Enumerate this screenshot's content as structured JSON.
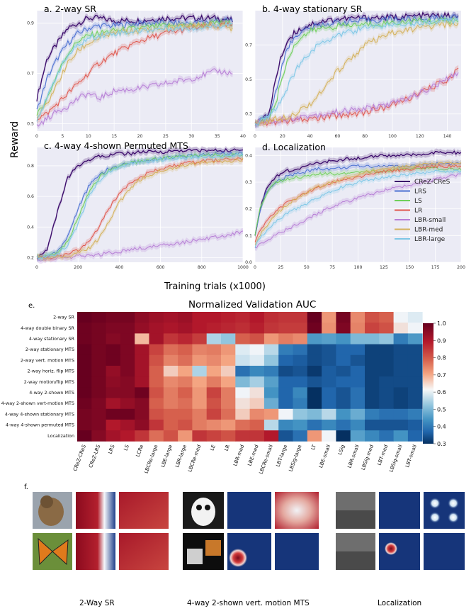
{
  "figure": {
    "ylabel": "Reward",
    "xlabel": "Training trials (x1000)",
    "panel_e_letter": "e.",
    "panel_f_letter": "f."
  },
  "legend": [
    "CReZ-CReS",
    "LRS",
    "LS",
    "LR",
    "LBR-small",
    "LBR-med",
    "LBR-large"
  ],
  "colors": {
    "CReZ-CReS": "#3b0a6b",
    "LRS": "#4a6fd1",
    "LS": "#6fcf5a",
    "LR": "#e0584e",
    "LBR-small": "#b77fd6",
    "LBR-med": "#d4b25c",
    "LBR-large": "#7ec7e6"
  },
  "chart_data": [
    {
      "type": "line",
      "title": "a. 2-way SR",
      "xlim": [
        0,
        40
      ],
      "ylim": [
        0.47,
        0.95
      ],
      "xticks": [
        0,
        5,
        10,
        15,
        20,
        25,
        30,
        35,
        40
      ],
      "yticks": [
        0.5,
        0.7,
        0.9
      ],
      "x": [
        0,
        2,
        4,
        6,
        8,
        10,
        12,
        15,
        20,
        25,
        30,
        35,
        38
      ],
      "series": [
        {
          "name": "CReZ-CReS",
          "values": [
            0.6,
            0.76,
            0.82,
            0.88,
            0.9,
            0.92,
            0.92,
            0.91,
            0.91,
            0.92,
            0.92,
            0.92,
            0.91
          ]
        },
        {
          "name": "LRS",
          "values": [
            0.55,
            0.68,
            0.76,
            0.82,
            0.86,
            0.88,
            0.89,
            0.89,
            0.9,
            0.9,
            0.9,
            0.91,
            0.91
          ]
        },
        {
          "name": "LS",
          "values": [
            0.53,
            0.6,
            0.7,
            0.78,
            0.83,
            0.85,
            0.86,
            0.87,
            0.88,
            0.89,
            0.89,
            0.9,
            0.9
          ]
        },
        {
          "name": "LR",
          "values": [
            0.52,
            0.54,
            0.58,
            0.62,
            0.66,
            0.7,
            0.74,
            0.78,
            0.83,
            0.86,
            0.88,
            0.89,
            0.89
          ]
        },
        {
          "name": "LBR-small",
          "values": [
            0.49,
            0.52,
            0.55,
            0.57,
            0.6,
            0.62,
            0.6,
            0.63,
            0.64,
            0.66,
            0.68,
            0.71,
            0.7
          ]
        },
        {
          "name": "LBR-med",
          "values": [
            0.52,
            0.58,
            0.66,
            0.74,
            0.79,
            0.82,
            0.84,
            0.86,
            0.87,
            0.88,
            0.89,
            0.89,
            0.88
          ]
        },
        {
          "name": "LBR-large",
          "values": [
            0.52,
            0.6,
            0.7,
            0.77,
            0.81,
            0.84,
            0.85,
            0.86,
            0.87,
            0.88,
            0.88,
            0.89,
            0.9
          ]
        }
      ]
    },
    {
      "type": "line",
      "title": "b. 4-way stationary SR",
      "xlim": [
        0,
        150
      ],
      "ylim": [
        0.2,
        0.9
      ],
      "xticks": [
        0,
        20,
        40,
        60,
        80,
        100,
        120,
        140
      ],
      "yticks": [
        0.3,
        0.5,
        0.7
      ],
      "x": [
        0,
        5,
        10,
        15,
        20,
        25,
        30,
        40,
        50,
        60,
        80,
        100,
        120,
        140,
        148
      ],
      "series": [
        {
          "name": "CReZ-CReS",
          "values": [
            0.25,
            0.26,
            0.3,
            0.5,
            0.66,
            0.74,
            0.78,
            0.82,
            0.84,
            0.85,
            0.86,
            0.86,
            0.87,
            0.87,
            0.86
          ]
        },
        {
          "name": "LRS",
          "values": [
            0.25,
            0.26,
            0.28,
            0.42,
            0.6,
            0.7,
            0.76,
            0.8,
            0.82,
            0.83,
            0.84,
            0.85,
            0.85,
            0.86,
            0.86
          ]
        },
        {
          "name": "LS",
          "values": [
            0.25,
            0.26,
            0.27,
            0.36,
            0.52,
            0.64,
            0.72,
            0.78,
            0.8,
            0.81,
            0.82,
            0.83,
            0.84,
            0.84,
            0.84
          ]
        },
        {
          "name": "LR",
          "values": [
            0.24,
            0.25,
            0.25,
            0.25,
            0.26,
            0.26,
            0.26,
            0.27,
            0.28,
            0.29,
            0.31,
            0.35,
            0.42,
            0.5,
            0.56
          ]
        },
        {
          "name": "LBR-small",
          "values": [
            0.24,
            0.25,
            0.26,
            0.26,
            0.27,
            0.27,
            0.28,
            0.29,
            0.3,
            0.31,
            0.33,
            0.36,
            0.42,
            0.5,
            0.54
          ]
        },
        {
          "name": "LBR-med",
          "values": [
            0.24,
            0.25,
            0.26,
            0.27,
            0.28,
            0.29,
            0.31,
            0.36,
            0.44,
            0.55,
            0.7,
            0.77,
            0.8,
            0.82,
            0.82
          ]
        },
        {
          "name": "LBR-large",
          "values": [
            0.24,
            0.26,
            0.28,
            0.33,
            0.4,
            0.48,
            0.56,
            0.66,
            0.72,
            0.76,
            0.8,
            0.82,
            0.83,
            0.84,
            0.84
          ]
        }
      ]
    },
    {
      "type": "line",
      "title": "c. 4-way 4-shown Permuted MTS",
      "xlim": [
        0,
        1000
      ],
      "ylim": [
        0.17,
        0.92
      ],
      "xticks": [
        0,
        200,
        400,
        600,
        800,
        1000
      ],
      "yticks": [
        0.2,
        0.4,
        0.6,
        0.8
      ],
      "x": [
        0,
        50,
        100,
        150,
        200,
        250,
        300,
        350,
        400,
        450,
        500,
        600,
        700,
        800,
        900,
        1000
      ],
      "series": [
        {
          "name": "CReZ-CReS",
          "values": [
            0.2,
            0.25,
            0.5,
            0.72,
            0.8,
            0.84,
            0.86,
            0.87,
            0.88,
            0.88,
            0.89,
            0.89,
            0.9,
            0.9,
            0.9,
            0.9
          ]
        },
        {
          "name": "LRS",
          "values": [
            0.2,
            0.21,
            0.24,
            0.34,
            0.52,
            0.66,
            0.74,
            0.78,
            0.8,
            0.82,
            0.83,
            0.85,
            0.86,
            0.87,
            0.88,
            0.88
          ]
        },
        {
          "name": "LS",
          "values": [
            0.2,
            0.21,
            0.23,
            0.3,
            0.46,
            0.62,
            0.72,
            0.77,
            0.8,
            0.82,
            0.83,
            0.85,
            0.86,
            0.87,
            0.87,
            0.87
          ]
        },
        {
          "name": "LR",
          "values": [
            0.2,
            0.2,
            0.21,
            0.22,
            0.25,
            0.3,
            0.4,
            0.52,
            0.62,
            0.69,
            0.73,
            0.78,
            0.81,
            0.83,
            0.84,
            0.85
          ]
        },
        {
          "name": "LBR-small",
          "values": [
            0.19,
            0.19,
            0.2,
            0.2,
            0.21,
            0.21,
            0.22,
            0.23,
            0.24,
            0.25,
            0.26,
            0.28,
            0.3,
            0.32,
            0.34,
            0.37
          ]
        },
        {
          "name": "LBR-med",
          "values": [
            0.2,
            0.2,
            0.21,
            0.21,
            0.23,
            0.26,
            0.32,
            0.44,
            0.56,
            0.65,
            0.71,
            0.77,
            0.8,
            0.82,
            0.83,
            0.84
          ]
        },
        {
          "name": "LBR-large",
          "values": [
            0.2,
            0.21,
            0.22,
            0.28,
            0.42,
            0.6,
            0.7,
            0.76,
            0.79,
            0.81,
            0.82,
            0.84,
            0.85,
            0.86,
            0.86,
            0.87
          ]
        }
      ]
    },
    {
      "type": "line",
      "title": "d. Localization",
      "xlim": [
        0,
        200
      ],
      "ylim": [
        0.0,
        0.43
      ],
      "xticks": [
        0,
        25,
        50,
        75,
        100,
        125,
        150,
        175,
        200
      ],
      "yticks": [
        0.0,
        0.1,
        0.2,
        0.3,
        0.4
      ],
      "x": [
        0,
        5,
        10,
        15,
        20,
        30,
        40,
        50,
        60,
        75,
        100,
        125,
        150,
        175,
        200
      ],
      "series": [
        {
          "name": "CReZ-CReS",
          "values": [
            0.1,
            0.2,
            0.26,
            0.3,
            0.32,
            0.34,
            0.35,
            0.36,
            0.37,
            0.38,
            0.39,
            0.4,
            0.4,
            0.41,
            0.41
          ]
        },
        {
          "name": "LRS",
          "values": [
            0.1,
            0.19,
            0.25,
            0.28,
            0.3,
            0.32,
            0.33,
            0.34,
            0.35,
            0.35,
            0.36,
            0.36,
            0.36,
            0.37,
            0.37
          ]
        },
        {
          "name": "LS",
          "values": [
            0.1,
            0.2,
            0.25,
            0.28,
            0.3,
            0.31,
            0.32,
            0.32,
            0.33,
            0.33,
            0.34,
            0.34,
            0.35,
            0.35,
            0.35
          ]
        },
        {
          "name": "LR",
          "values": [
            0.08,
            0.12,
            0.15,
            0.17,
            0.19,
            0.22,
            0.24,
            0.26,
            0.28,
            0.3,
            0.32,
            0.34,
            0.35,
            0.36,
            0.36
          ]
        },
        {
          "name": "LBR-small",
          "values": [
            0.05,
            0.07,
            0.08,
            0.09,
            0.1,
            0.12,
            0.14,
            0.16,
            0.18,
            0.21,
            0.24,
            0.27,
            0.29,
            0.31,
            0.33
          ]
        },
        {
          "name": "LBR-med",
          "values": [
            0.07,
            0.1,
            0.13,
            0.16,
            0.18,
            0.21,
            0.24,
            0.26,
            0.28,
            0.3,
            0.33,
            0.35,
            0.36,
            0.37,
            0.37
          ]
        },
        {
          "name": "LBR-large",
          "values": [
            0.06,
            0.09,
            0.11,
            0.13,
            0.15,
            0.18,
            0.2,
            0.22,
            0.24,
            0.27,
            0.3,
            0.32,
            0.33,
            0.34,
            0.34
          ]
        }
      ]
    },
    {
      "type": "heatmap",
      "title": "Normalized Validation AUC",
      "colorbar_ticks": [
        1.0,
        0.9,
        0.8,
        0.7,
        0.6,
        0.5,
        0.4,
        0.3
      ],
      "rows": [
        "2-way SR",
        "4-way double binary SR",
        "4-way stationary SR",
        "2-way stationary MTS",
        "2-way vert. motion MTS",
        "2-way horiz. flip MTS",
        "2-way motion/flip MTS",
        "4-way 2-shown MTS",
        "4-way 2-shown vert-motion MTS",
        "4-way 4-shown stationary MTS",
        "4-way 4-shown permuted MTS",
        "Localization"
      ],
      "cols": [
        "CReZ-CReS",
        "CReZ-LRS",
        "LRS",
        "LS",
        "LCRe",
        "LBCRe-large",
        "LBE-large",
        "LBR-large",
        "LBCRe-med",
        "LE",
        "LR",
        "LBR-med",
        "LBE-med",
        "LBCRe-small",
        "LBT-large",
        "LBSig-large",
        "LT",
        "LBE-small",
        "LSig",
        "LBR-small",
        "LBSig-med",
        "LBT-med",
        "LBSig-small",
        "LBT-small"
      ],
      "values": [
        [
          1.0,
          0.99,
          0.98,
          0.98,
          0.95,
          0.93,
          0.92,
          0.93,
          0.9,
          0.9,
          0.89,
          0.88,
          0.9,
          0.87,
          0.86,
          0.86,
          1.0,
          0.72,
          0.98,
          0.74,
          0.82,
          0.8,
          0.62,
          0.6
        ],
        [
          0.99,
          0.98,
          0.97,
          0.97,
          0.94,
          0.92,
          0.91,
          0.92,
          0.9,
          0.89,
          0.88,
          0.87,
          0.89,
          0.86,
          0.85,
          0.85,
          0.99,
          0.73,
          0.97,
          0.75,
          0.84,
          0.82,
          0.64,
          0.62
        ],
        [
          0.99,
          0.98,
          0.96,
          0.97,
          0.68,
          0.92,
          0.86,
          0.88,
          0.85,
          0.55,
          0.52,
          0.8,
          0.82,
          0.72,
          0.76,
          0.74,
          0.45,
          0.46,
          0.44,
          0.5,
          0.5,
          0.52,
          0.4,
          0.45
        ],
        [
          1.0,
          0.98,
          0.99,
          0.97,
          0.92,
          0.84,
          0.78,
          0.8,
          0.75,
          0.76,
          0.72,
          0.6,
          0.62,
          0.56,
          0.4,
          0.38,
          0.33,
          0.34,
          0.36,
          0.36,
          0.32,
          0.32,
          0.33,
          0.33
        ],
        [
          1.0,
          0.98,
          0.99,
          0.97,
          0.92,
          0.82,
          0.75,
          0.78,
          0.72,
          0.74,
          0.7,
          0.58,
          0.6,
          0.52,
          0.36,
          0.35,
          0.33,
          0.34,
          0.36,
          0.34,
          0.32,
          0.32,
          0.33,
          0.33
        ],
        [
          1.0,
          0.98,
          0.94,
          0.97,
          0.92,
          0.8,
          0.66,
          0.7,
          0.55,
          0.7,
          0.66,
          0.38,
          0.42,
          0.4,
          0.33,
          0.34,
          0.31,
          0.35,
          0.34,
          0.36,
          0.32,
          0.32,
          0.33,
          0.33
        ],
        [
          1.0,
          0.98,
          0.95,
          0.96,
          0.92,
          0.8,
          0.74,
          0.76,
          0.7,
          0.76,
          0.7,
          0.5,
          0.54,
          0.46,
          0.36,
          0.36,
          0.34,
          0.35,
          0.36,
          0.36,
          0.32,
          0.33,
          0.33,
          0.33
        ],
        [
          1.0,
          0.98,
          0.96,
          0.96,
          0.99,
          0.82,
          0.76,
          0.8,
          0.72,
          0.84,
          0.76,
          0.62,
          0.64,
          0.44,
          0.36,
          0.42,
          0.3,
          0.36,
          0.34,
          0.38,
          0.32,
          0.33,
          0.32,
          0.33
        ],
        [
          0.99,
          0.97,
          0.92,
          0.94,
          0.96,
          0.8,
          0.76,
          0.78,
          0.72,
          0.82,
          0.76,
          0.64,
          0.66,
          0.48,
          0.36,
          0.4,
          0.3,
          0.36,
          0.34,
          0.38,
          0.32,
          0.33,
          0.32,
          0.33
        ],
        [
          0.98,
          0.97,
          0.99,
          0.99,
          0.96,
          0.82,
          0.8,
          0.8,
          0.76,
          0.84,
          0.78,
          0.66,
          0.74,
          0.72,
          0.62,
          0.52,
          0.5,
          0.56,
          0.44,
          0.48,
          0.4,
          0.38,
          0.38,
          0.4
        ],
        [
          0.98,
          0.97,
          0.9,
          0.92,
          0.95,
          0.86,
          0.8,
          0.82,
          0.76,
          0.74,
          0.72,
          0.78,
          0.8,
          0.56,
          0.42,
          0.44,
          0.38,
          0.42,
          0.38,
          0.42,
          0.34,
          0.34,
          0.34,
          0.35
        ],
        [
          1.0,
          0.96,
          0.92,
          0.9,
          0.86,
          0.78,
          0.82,
          0.72,
          0.86,
          0.84,
          0.82,
          0.86,
          0.86,
          0.9,
          0.34,
          0.38,
          0.72,
          0.62,
          0.3,
          0.46,
          0.42,
          0.38,
          0.44,
          0.36
        ]
      ]
    }
  ],
  "panel_f": {
    "captions": [
      "2-Way SR",
      "4-way 2-shown vert. motion MTS",
      "Localization"
    ]
  }
}
